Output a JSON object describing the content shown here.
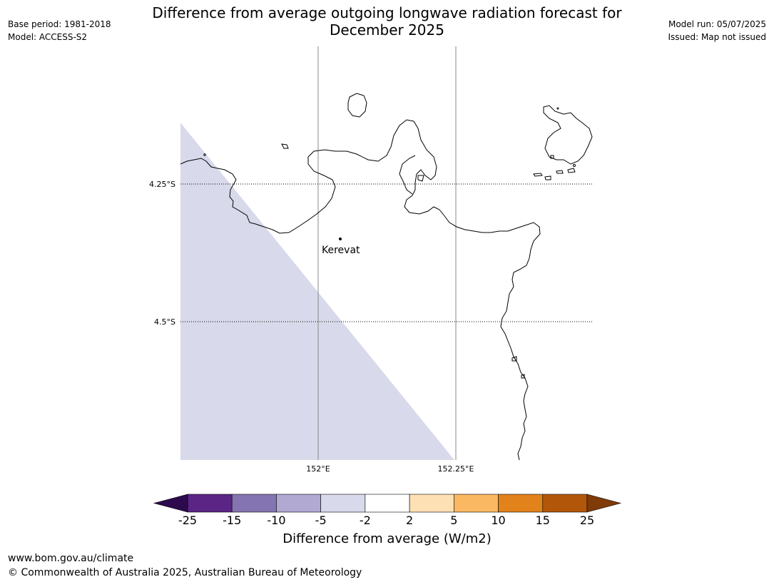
{
  "meta": {
    "base_period": "Base period: 1981-2018",
    "model": "Model: ACCESS-S2",
    "model_run": "Model run: 05/07/2025",
    "issued": "Issued: Map not issued"
  },
  "title": {
    "line1": "Difference from average outgoing longwave radiation forecast for",
    "line2": "December 2025"
  },
  "map": {
    "lat_labels": [
      "4.25°S",
      "4.5°S"
    ],
    "lon_labels": [
      "152°E",
      "152.25°E"
    ],
    "place_label": "Kerevat",
    "anomaly_fill_color": "#d8d9ea",
    "coast_color": "#000000"
  },
  "colorbar": {
    "ticks": [
      "-25",
      "-15",
      "-10",
      "-5",
      "-2",
      "2",
      "5",
      "10",
      "15",
      "25"
    ],
    "colors": [
      "#5a2585",
      "#8474b1",
      "#b1a9d2",
      "#d8d9ea",
      "#ffffff",
      "#fde0b4",
      "#fbb862",
      "#e1821a",
      "#b2570a"
    ],
    "extend_low_color": "#2d0a4e",
    "extend_high_color": "#7f3b08",
    "label": "Difference from average (W/m2)"
  },
  "footer": {
    "url": "www.bom.gov.au/climate",
    "copyright": "© Commonwealth of Australia 2025, Australian Bureau of Meteorology"
  }
}
